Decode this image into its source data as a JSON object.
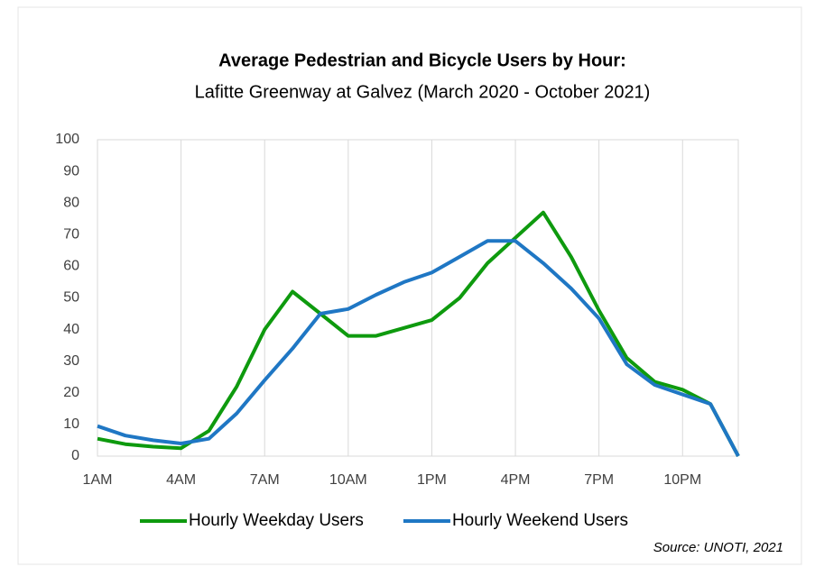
{
  "chart_data": {
    "type": "line",
    "title": "Average Pedestrian and Bicycle Users by Hour:",
    "subtitle": "Lafitte Greenway at Galvez (March 2020 - October 2021)",
    "source": "Source: UNOTI, 2021",
    "categories": [
      "1AM",
      null,
      null,
      "4AM",
      null,
      null,
      "7AM",
      null,
      null,
      "10AM",
      null,
      null,
      "1PM",
      null,
      null,
      "4PM",
      null,
      null,
      "7PM",
      null,
      null,
      "10PM",
      null,
      null
    ],
    "series": [
      {
        "name": "Hourly Weekday Users",
        "color": "#0e9a0e",
        "values": [
          5.5,
          3.8,
          3,
          2.5,
          8,
          22,
          40,
          52,
          45,
          38,
          38,
          40.5,
          43,
          50,
          61,
          69,
          77,
          63,
          46,
          31,
          23.5,
          21,
          16.5,
          0
        ]
      },
      {
        "name": "Hourly Weekend Users",
        "color": "#1f77c4",
        "values": [
          9.5,
          6.5,
          5,
          4,
          5.5,
          13.5,
          24,
          34,
          45,
          46.5,
          51,
          55,
          58,
          63,
          68,
          68,
          61,
          53,
          43.5,
          29,
          22.5,
          19.5,
          16.5,
          0
        ]
      }
    ],
    "ylim": [
      0,
      100
    ],
    "yticks": [
      0,
      10,
      20,
      30,
      40,
      50,
      60,
      70,
      80,
      90,
      100
    ],
    "grid": "x",
    "legend": "bottom"
  }
}
